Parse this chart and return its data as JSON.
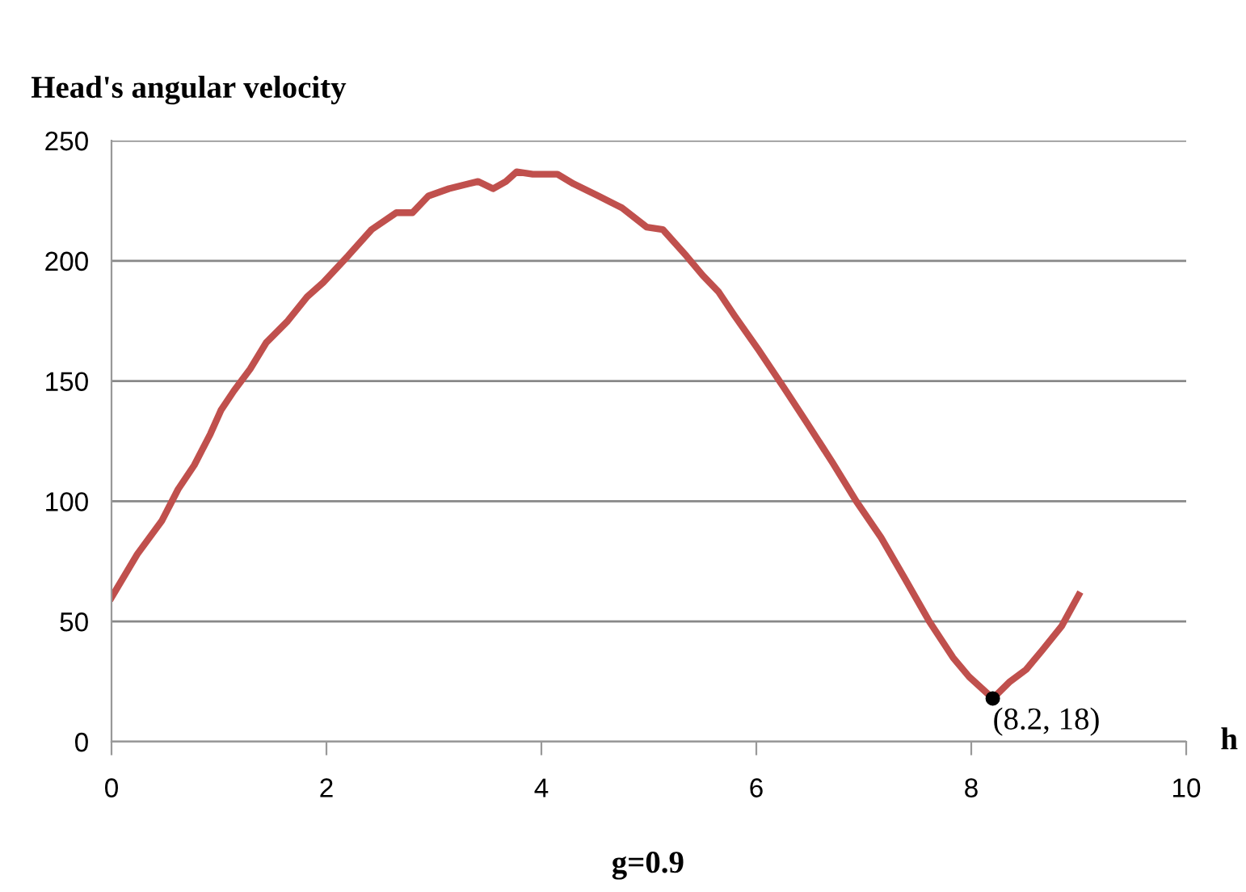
{
  "chart_data": {
    "type": "line",
    "ylabel": "Head's angular velocity",
    "xlabel": "h",
    "annotations": [
      {
        "text": "(8.2, 18)",
        "x": 8.2,
        "y": 18
      },
      "g=0.9"
    ],
    "series": [
      {
        "color": "#c0504d",
        "marker": "none",
        "x": [
          0,
          0.24,
          0.47,
          0.62,
          0.77,
          0.92,
          1.02,
          1.14,
          1.29,
          1.44,
          1.64,
          1.82,
          1.97,
          2.2,
          2.42,
          2.65,
          2.8,
          2.95,
          3.14,
          3.32,
          3.41,
          3.55,
          3.67,
          3.77,
          3.92,
          4.15,
          4.3,
          4.53,
          4.75,
          4.98,
          5.13,
          5.35,
          5.5,
          5.65,
          5.8,
          6.02,
          6.26,
          6.48,
          6.71,
          6.93,
          7.16,
          7.38,
          7.61,
          7.83,
          7.98,
          8.2,
          8.36,
          8.51,
          8.66,
          8.84,
          9.0
        ],
        "values": [
          60,
          78,
          92,
          105,
          115,
          128,
          138,
          146,
          155,
          166,
          175,
          185,
          191,
          202,
          213,
          220,
          220,
          227,
          230,
          232,
          233,
          230,
          233,
          237,
          236,
          236,
          232,
          227,
          222,
          214,
          213,
          202,
          194,
          187,
          177,
          163,
          147,
          132,
          116,
          100,
          85,
          68,
          50,
          35,
          27,
          18,
          25,
          30,
          38,
          48,
          61
        ]
      },
      {
        "type": "scatter",
        "color": "#000000",
        "marker": "circle",
        "x": [
          8.2
        ],
        "values": [
          18
        ]
      }
    ],
    "xlim": [
      0,
      10
    ],
    "ylim": [
      0,
      250
    ],
    "xticks": [
      0,
      2,
      4,
      6,
      8,
      10
    ],
    "yticks": [
      0,
      50,
      100,
      150,
      200,
      250
    ],
    "grid": "y"
  }
}
